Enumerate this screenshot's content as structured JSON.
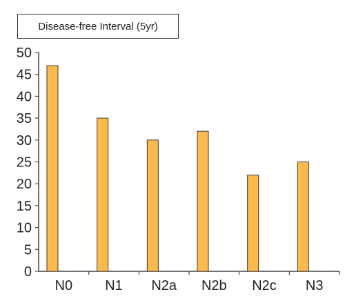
{
  "chart_data": {
    "type": "bar",
    "title": "Disease-free Interval (5yr)",
    "categories": [
      "N0",
      "N1",
      "N2a",
      "N2b",
      "N2c",
      "N3"
    ],
    "values": [
      47,
      35,
      30,
      32,
      22,
      25
    ],
    "xlabel": "",
    "ylabel": "",
    "ylim": [
      0,
      50
    ],
    "yticks": [
      0,
      5,
      10,
      15,
      20,
      25,
      30,
      35,
      40,
      45,
      50
    ],
    "grid": false,
    "legend": "none"
  },
  "colors": {
    "bar_fill": "#FDBA4A",
    "bar_stroke": "#3a3a3a",
    "axis": "#444444"
  }
}
